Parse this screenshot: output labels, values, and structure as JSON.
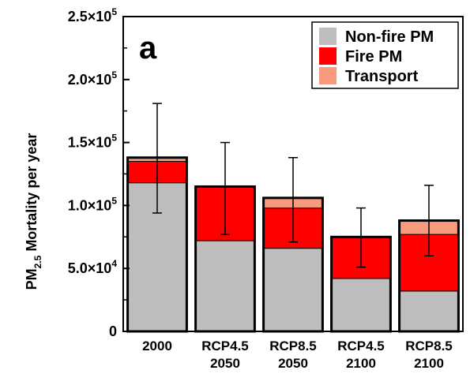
{
  "chart_data": {
    "type": "bar",
    "stacked": true,
    "panel_label": "a",
    "ylabel": {
      "main": "PM",
      "sub": "2.5",
      "rest": " Mortality per year"
    },
    "ylim": [
      0,
      250000
    ],
    "yticks": [
      {
        "value": 0,
        "mant": "0",
        "exp": ""
      },
      {
        "value": 50000,
        "mant": "5.0×10",
        "exp": "4"
      },
      {
        "value": 100000,
        "mant": "1.0×10",
        "exp": "5"
      },
      {
        "value": 150000,
        "mant": "1.5×10",
        "exp": "5"
      },
      {
        "value": 200000,
        "mant": "2.0×10",
        "exp": "5"
      },
      {
        "value": 250000,
        "mant": "2.5×10",
        "exp": "5"
      }
    ],
    "categories": [
      {
        "line1": "2000",
        "line2": ""
      },
      {
        "line1": "RCP4.5",
        "line2": "2050"
      },
      {
        "line1": "RCP8.5",
        "line2": "2050"
      },
      {
        "line1": "RCP4.5",
        "line2": "2100"
      },
      {
        "line1": "RCP8.5",
        "line2": "2100"
      }
    ],
    "series": [
      {
        "name": "Non-fire PM",
        "color": "#bebebe",
        "values": [
          118000,
          72000,
          66000,
          42000,
          32000
        ]
      },
      {
        "name": "Fire PM",
        "color": "#ff0000",
        "values": [
          17000,
          43000,
          32000,
          33000,
          45000
        ]
      },
      {
        "name": "Transport",
        "color": "#f79a7e",
        "values": [
          3000,
          0,
          8000,
          0,
          11000
        ]
      }
    ],
    "error_bars": [
      {
        "low": 94000,
        "high": 181000
      },
      {
        "low": 77000,
        "high": 150000
      },
      {
        "low": 71000,
        "high": 138000
      },
      {
        "low": 51000,
        "high": 98000
      },
      {
        "low": 60000,
        "high": 116000
      }
    ],
    "legend_position": "top-right"
  }
}
